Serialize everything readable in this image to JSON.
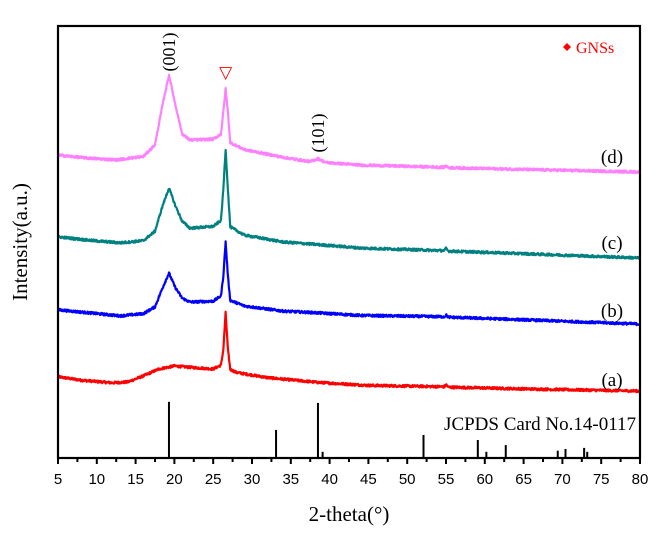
{
  "chart_data": {
    "type": "line",
    "title": "",
    "xlabel": "2-theta(°)",
    "ylabel": "Intensity(a.u.)",
    "xlim": [
      5,
      80
    ],
    "ylim": [
      0,
      100
    ],
    "xticks": [
      5,
      10,
      15,
      20,
      25,
      30,
      35,
      40,
      45,
      50,
      55,
      60,
      65,
      70,
      75,
      80
    ],
    "xtick_labels": [
      "5",
      "10",
      "15",
      "20",
      "25",
      "30",
      "35",
      "40",
      "45",
      "50",
      "55",
      "60",
      "65",
      "70",
      "75",
      "80"
    ],
    "minor_tick_step": 2.5,
    "grid": false,
    "legend": {
      "position": "top-right",
      "marker": "diamond",
      "label": "GNSs",
      "color": "#ff0000"
    },
    "series": [
      {
        "name": "(a)",
        "color": "#ff0000",
        "points": [
          [
            5,
            18.8
          ],
          [
            8,
            18.0
          ],
          [
            12,
            17.4
          ],
          [
            14,
            17.6
          ],
          [
            16,
            19.0
          ],
          [
            18,
            20.6
          ],
          [
            20,
            21.3
          ],
          [
            22,
            21.0
          ],
          [
            25,
            20.6
          ],
          [
            26.0,
            21.5
          ],
          [
            26.3,
            25
          ],
          [
            26.6,
            33.6
          ],
          [
            26.9,
            25
          ],
          [
            27.2,
            20.5
          ],
          [
            28,
            19.8
          ],
          [
            32,
            18.6
          ],
          [
            38.5,
            17.5
          ],
          [
            45,
            16.8
          ],
          [
            54.8,
            16.5
          ],
          [
            55,
            17.0
          ],
          [
            55.3,
            16.4
          ],
          [
            65,
            16.0
          ],
          [
            80,
            15.5
          ]
        ]
      },
      {
        "name": "(b)",
        "color": "#0000ff",
        "points": [
          [
            5,
            34.3
          ],
          [
            9,
            33.6
          ],
          [
            13,
            32.9
          ],
          [
            16,
            33.4
          ],
          [
            17.5,
            35.0
          ],
          [
            18.5,
            39.5
          ],
          [
            19.3,
            42.8
          ],
          [
            20.1,
            39.5
          ],
          [
            21,
            37.0
          ],
          [
            22,
            36.1
          ],
          [
            25,
            36.3
          ],
          [
            26.0,
            37.5
          ],
          [
            26.3,
            42
          ],
          [
            26.6,
            50.0
          ],
          [
            26.9,
            42
          ],
          [
            27.2,
            36.5
          ],
          [
            29,
            35.2
          ],
          [
            34,
            34.0
          ],
          [
            38.5,
            33.6
          ],
          [
            44,
            33.0
          ],
          [
            54.8,
            32.7
          ],
          [
            55,
            33.1
          ],
          [
            55.3,
            32.6
          ],
          [
            65,
            32.0
          ],
          [
            80,
            31.0
          ]
        ]
      },
      {
        "name": "(c)",
        "color": "#008080",
        "points": [
          [
            5,
            51.2
          ],
          [
            9,
            50.4
          ],
          [
            13,
            49.8
          ],
          [
            16,
            50.3
          ],
          [
            17.5,
            52.5
          ],
          [
            18.5,
            58.5
          ],
          [
            19.3,
            62.5
          ],
          [
            20.1,
            58.5
          ],
          [
            21,
            54.8
          ],
          [
            22,
            53.2
          ],
          [
            25,
            53.6
          ],
          [
            26.0,
            55.0
          ],
          [
            26.3,
            62
          ],
          [
            26.6,
            71.5
          ],
          [
            26.9,
            62
          ],
          [
            27.2,
            53.5
          ],
          [
            29,
            51.6
          ],
          [
            34,
            50.0
          ],
          [
            38.5,
            49.4
          ],
          [
            44,
            48.6
          ],
          [
            54.8,
            48.0
          ],
          [
            55,
            48.5
          ],
          [
            55.3,
            47.9
          ],
          [
            65,
            47.3
          ],
          [
            80,
            46.3
          ]
        ]
      },
      {
        "name": "(d)",
        "color": "#ff80ff",
        "points": [
          [
            5,
            70.1
          ],
          [
            9,
            69.4
          ],
          [
            12.5,
            69.0
          ],
          [
            16,
            69.8
          ],
          [
            17.5,
            72.5
          ],
          [
            18.5,
            82.0
          ],
          [
            19.3,
            88.7
          ],
          [
            20.1,
            82.0
          ],
          [
            21,
            75.0
          ],
          [
            22,
            73.6
          ],
          [
            25,
            73.8
          ],
          [
            26.0,
            75.0
          ],
          [
            26.3,
            80
          ],
          [
            26.6,
            85.4
          ],
          [
            26.9,
            80
          ],
          [
            27.2,
            73.0
          ],
          [
            29,
            71.4
          ],
          [
            34,
            69.6
          ],
          [
            37.5,
            68.6
          ],
          [
            38.5,
            69.3
          ],
          [
            39.5,
            68.4
          ],
          [
            44,
            67.8
          ],
          [
            54.8,
            67.3
          ],
          [
            55,
            67.8
          ],
          [
            55.3,
            67.2
          ],
          [
            65,
            66.8
          ],
          [
            80,
            66.2
          ]
        ]
      }
    ],
    "reference_pattern": {
      "label": "JCPDS Card No.14-0117",
      "color": "#000000",
      "baseline": 0,
      "max_height": 13,
      "sticks": [
        {
          "x": 19.3,
          "rel_intensity": 100
        },
        {
          "x": 33.1,
          "rel_intensity": 50
        },
        {
          "x": 38.5,
          "rel_intensity": 98
        },
        {
          "x": 39.1,
          "rel_intensity": 11
        },
        {
          "x": 52.1,
          "rel_intensity": 41
        },
        {
          "x": 59.1,
          "rel_intensity": 32
        },
        {
          "x": 60.2,
          "rel_intensity": 11
        },
        {
          "x": 62.7,
          "rel_intensity": 23
        },
        {
          "x": 69.4,
          "rel_intensity": 13
        },
        {
          "x": 70.4,
          "rel_intensity": 16
        },
        {
          "x": 72.8,
          "rel_intensity": 18
        },
        {
          "x": 73.2,
          "rel_intensity": 11
        }
      ]
    },
    "annotations": [
      {
        "text": "(001)",
        "x": 19.3,
        "rotated": true
      },
      {
        "text": "▽",
        "x": 26.6,
        "color": "#ff0000"
      },
      {
        "text": "(101)",
        "x": 38.5,
        "rotated": true
      }
    ]
  }
}
